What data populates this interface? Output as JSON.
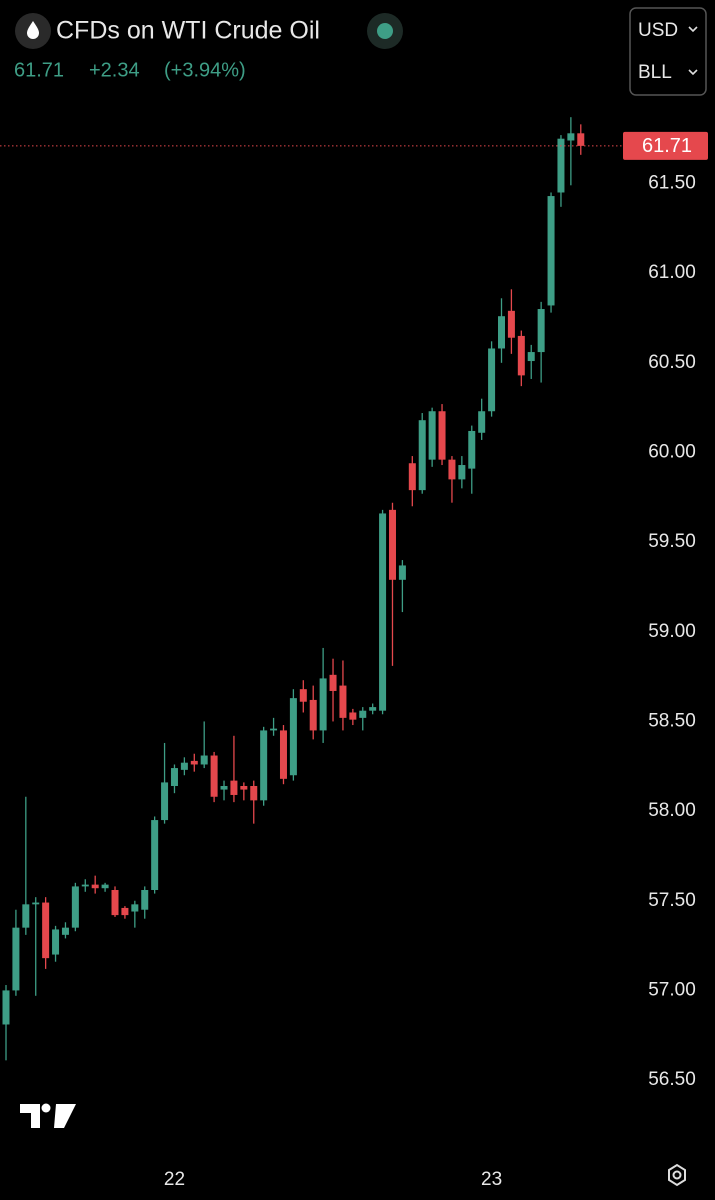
{
  "chart_data": {
    "type": "candlestick",
    "title": "CFDs on WTI Crude Oil",
    "last_price": 61.71,
    "change": "+2.34",
    "change_pct": "(+3.94%)",
    "currency": "USD",
    "unit": "BLL",
    "up_color": "#3e9e86",
    "down_color": "#e5484d",
    "categories": [
      null,
      null,
      null,
      null,
      null,
      null,
      null,
      null,
      null,
      null,
      null,
      null,
      null,
      null,
      null,
      null,
      null,
      "22",
      null,
      null,
      null,
      null,
      null,
      null,
      null,
      null,
      null,
      null,
      null,
      null,
      null,
      null,
      null,
      null,
      null,
      null,
      null,
      null,
      null,
      null,
      null,
      null,
      null,
      null,
      null,
      null,
      null,
      null,
      null,
      "23",
      null,
      null,
      null,
      null,
      null,
      null,
      null,
      null,
      null
    ],
    "open": [
      56.81,
      57.0,
      57.35,
      57.48,
      57.49,
      57.2,
      57.31,
      57.35,
      57.58,
      57.59,
      57.57,
      57.56,
      57.46,
      57.44,
      57.45,
      57.56,
      57.95,
      58.14,
      58.23,
      58.28,
      58.26,
      58.31,
      58.12,
      58.17,
      58.14,
      58.14,
      58.06,
      58.45,
      58.45,
      58.2,
      58.68,
      58.62,
      58.45,
      58.76,
      58.7,
      58.55,
      58.52,
      58.56,
      58.56,
      59.68,
      59.29,
      59.94,
      59.79,
      59.96,
      60.23,
      59.96,
      59.85,
      59.91,
      60.11,
      60.23,
      60.58,
      60.79,
      60.65,
      60.51,
      60.56,
      60.82,
      61.45,
      61.74,
      61.78
    ],
    "high": [
      57.03,
      57.45,
      58.08,
      57.52,
      57.52,
      57.36,
      57.38,
      57.6,
      57.62,
      57.64,
      57.6,
      57.58,
      57.47,
      57.5,
      57.58,
      57.97,
      58.38,
      58.26,
      58.3,
      58.32,
      58.5,
      58.33,
      58.17,
      58.42,
      58.16,
      58.17,
      58.47,
      58.52,
      58.48,
      58.68,
      58.73,
      58.7,
      58.91,
      58.85,
      58.84,
      58.57,
      58.58,
      58.6,
      59.68,
      59.72,
      59.4,
      59.98,
      60.22,
      60.25,
      60.27,
      59.98,
      59.98,
      60.15,
      60.3,
      60.62,
      60.86,
      60.91,
      60.68,
      60.6,
      60.84,
      61.45,
      61.77,
      61.87,
      61.83
    ],
    "low": [
      56.61,
      56.97,
      57.31,
      56.97,
      57.12,
      57.16,
      57.29,
      57.33,
      57.55,
      57.54,
      57.55,
      57.41,
      57.4,
      57.35,
      57.4,
      57.54,
      57.93,
      58.1,
      58.2,
      58.22,
      58.24,
      58.05,
      58.06,
      58.05,
      58.06,
      57.93,
      58.03,
      58.42,
      58.15,
      58.17,
      58.55,
      58.4,
      58.38,
      58.5,
      58.45,
      58.48,
      58.45,
      58.54,
      58.54,
      58.81,
      59.11,
      59.7,
      59.77,
      59.92,
      59.93,
      59.72,
      59.8,
      59.77,
      60.07,
      60.2,
      60.5,
      60.55,
      60.37,
      60.41,
      60.39,
      60.78,
      61.37,
      61.49,
      61.66
    ],
    "close": [
      57.0,
      57.35,
      57.48,
      57.49,
      57.18,
      57.34,
      57.35,
      57.58,
      57.59,
      57.57,
      57.59,
      57.42,
      57.42,
      57.48,
      57.56,
      57.95,
      58.16,
      58.24,
      58.27,
      58.26,
      58.31,
      58.08,
      58.14,
      58.09,
      58.12,
      58.06,
      58.45,
      58.46,
      58.18,
      58.63,
      58.61,
      58.45,
      58.74,
      58.67,
      58.52,
      58.51,
      58.56,
      58.58,
      59.66,
      59.29,
      59.37,
      59.79,
      60.18,
      60.23,
      59.96,
      59.85,
      59.93,
      60.12,
      60.23,
      60.58,
      60.76,
      60.64,
      60.43,
      60.56,
      60.8,
      61.43,
      61.75,
      61.78,
      61.71
    ],
    "ylim": [
      56.11,
      61.91
    ],
    "yticks": [
      {
        "value": 56.5,
        "label": "56.50"
      },
      {
        "value": 57,
        "label": "57.00"
      },
      {
        "value": 57.5,
        "label": "57.50"
      },
      {
        "value": 58,
        "label": "58.00"
      },
      {
        "value": 58.5,
        "label": "58.50"
      },
      {
        "value": 59,
        "label": "59.00"
      },
      {
        "value": 59.5,
        "label": "59.50"
      },
      {
        "value": 60,
        "label": "60.00"
      },
      {
        "value": 60.5,
        "label": "60.50"
      },
      {
        "value": 61,
        "label": "61.00"
      },
      {
        "value": 61.5,
        "label": "61.50"
      }
    ],
    "grid": false
  }
}
